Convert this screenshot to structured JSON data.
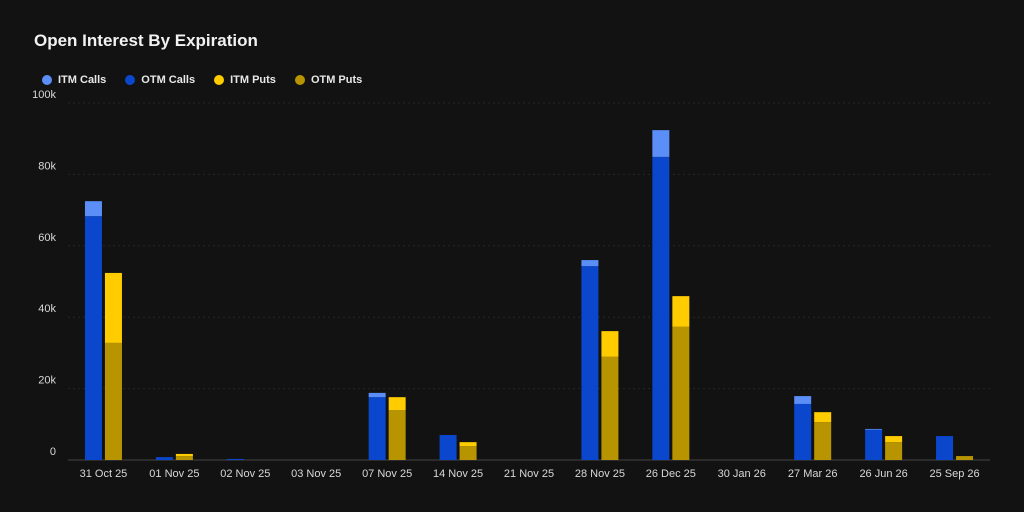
{
  "chart_data": {
    "type": "bar",
    "stacked": true,
    "title": "Open Interest By Expiration",
    "categories": [
      "31 Oct 25",
      "01 Nov 25",
      "02 Nov 25",
      "03 Nov 25",
      "07 Nov 25",
      "14 Nov 25",
      "21 Nov 25",
      "28 Nov 25",
      "26 Dec 25",
      "30 Jan 26",
      "27 Mar 26",
      "26 Jun 26",
      "25 Sep 26"
    ],
    "series": [
      {
        "name": "ITM Calls",
        "stack": "calls",
        "color": "#5b8ef7",
        "values": [
          4200,
          0,
          0,
          0,
          1200,
          0,
          0,
          1700,
          7500,
          0,
          2200,
          200,
          0
        ]
      },
      {
        "name": "OTM Calls",
        "stack": "calls",
        "color": "#0a47cc",
        "values": [
          68300,
          800,
          300,
          0,
          17600,
          7000,
          0,
          54300,
          84900,
          0,
          15700,
          8500,
          6700
        ]
      },
      {
        "name": "ITM Puts",
        "stack": "puts",
        "color": "#ffcc00",
        "values": [
          19600,
          600,
          0,
          0,
          3600,
          1100,
          0,
          7200,
          8600,
          0,
          2800,
          1700,
          0
        ]
      },
      {
        "name": "OTM Puts",
        "stack": "puts",
        "color": "#b89500",
        "values": [
          32800,
          1100,
          0,
          0,
          14000,
          3900,
          0,
          28900,
          37300,
          0,
          10600,
          5000,
          1100
        ]
      }
    ],
    "ylim": [
      0,
      100000
    ],
    "yticks": [
      "0",
      "20k",
      "40k",
      "60k",
      "80k",
      "100k"
    ],
    "grid": true,
    "legend_position": "top-left"
  }
}
